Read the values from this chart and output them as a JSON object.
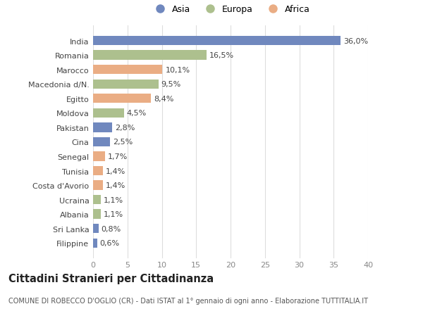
{
  "countries": [
    "Filippine",
    "Sri Lanka",
    "Albania",
    "Ucraina",
    "Costa d'Avorio",
    "Tunisia",
    "Senegal",
    "Cina",
    "Pakistan",
    "Moldova",
    "Egitto",
    "Macedonia d/N.",
    "Marocco",
    "Romania",
    "India"
  ],
  "values": [
    0.6,
    0.8,
    1.1,
    1.1,
    1.4,
    1.4,
    1.7,
    2.5,
    2.8,
    4.5,
    8.4,
    9.5,
    10.1,
    16.5,
    36.0
  ],
  "labels": [
    "0,6%",
    "0,8%",
    "1,1%",
    "1,1%",
    "1,4%",
    "1,4%",
    "1,7%",
    "2,5%",
    "2,8%",
    "4,5%",
    "8,4%",
    "9,5%",
    "10,1%",
    "16,5%",
    "36,0%"
  ],
  "continents": [
    "Asia",
    "Asia",
    "Europa",
    "Europa",
    "Africa",
    "Africa",
    "Africa",
    "Asia",
    "Asia",
    "Europa",
    "Africa",
    "Europa",
    "Africa",
    "Europa",
    "Asia"
  ],
  "colors": {
    "Asia": "#7088be",
    "Europa": "#adc08e",
    "Africa": "#eaad84"
  },
  "legend_labels": [
    "Asia",
    "Europa",
    "Africa"
  ],
  "title": "Cittadini Stranieri per Cittadinanza",
  "subtitle": "COMUNE DI ROBECCO D'OGLIO (CR) - Dati ISTAT al 1° gennaio di ogni anno - Elaborazione TUTTITALIA.IT",
  "xlim": [
    0,
    40
  ],
  "xticks": [
    0,
    5,
    10,
    15,
    20,
    25,
    30,
    35,
    40
  ],
  "bg_color": "#ffffff",
  "grid_color": "#dddddd",
  "bar_height": 0.65,
  "label_fontsize": 8.0,
  "tick_fontsize": 8.0,
  "ytick_fontsize": 8.0,
  "title_fontsize": 10.5,
  "subtitle_fontsize": 7.0
}
